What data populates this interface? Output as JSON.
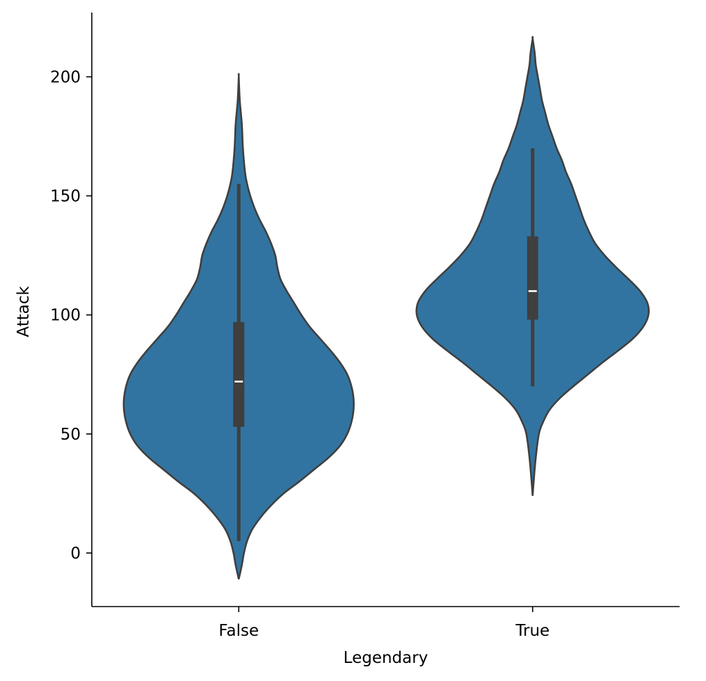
{
  "chart_data": {
    "type": "violin",
    "title": "",
    "xlabel": "Legendary",
    "ylabel": "Attack",
    "ylim": [
      -22.5,
      227
    ],
    "yticks": [
      0,
      50,
      100,
      150,
      200
    ],
    "categories": [
      "False",
      "True"
    ],
    "grid": false,
    "color": "#3274a1",
    "edge_color": "#3f3f3f",
    "violins": [
      {
        "category": "False",
        "extent": [
          -11,
          200
        ],
        "min": 5,
        "q1": 53,
        "median": 72,
        "q3": 97,
        "max": 155,
        "density": [
          [
            -11,
            0.0
          ],
          [
            -5,
            0.03
          ],
          [
            0,
            0.05
          ],
          [
            5,
            0.08
          ],
          [
            10,
            0.13
          ],
          [
            15,
            0.21
          ],
          [
            20,
            0.31
          ],
          [
            25,
            0.43
          ],
          [
            30,
            0.58
          ],
          [
            35,
            0.72
          ],
          [
            40,
            0.86
          ],
          [
            45,
            0.97
          ],
          [
            50,
            1.04
          ],
          [
            55,
            1.08
          ],
          [
            60,
            1.1
          ],
          [
            65,
            1.1
          ],
          [
            70,
            1.08
          ],
          [
            75,
            1.04
          ],
          [
            80,
            0.97
          ],
          [
            85,
            0.88
          ],
          [
            90,
            0.78
          ],
          [
            95,
            0.68
          ],
          [
            100,
            0.6
          ],
          [
            105,
            0.53
          ],
          [
            110,
            0.46
          ],
          [
            115,
            0.4
          ],
          [
            120,
            0.37
          ],
          [
            125,
            0.35
          ],
          [
            130,
            0.31
          ],
          [
            135,
            0.26
          ],
          [
            140,
            0.2
          ],
          [
            145,
            0.15
          ],
          [
            150,
            0.11
          ],
          [
            155,
            0.08
          ],
          [
            160,
            0.06
          ],
          [
            170,
            0.04
          ],
          [
            180,
            0.03
          ],
          [
            190,
            0.01
          ],
          [
            200,
            0.0
          ]
        ]
      },
      {
        "category": "True",
        "extent": [
          24,
          216
        ],
        "min": 70,
        "q1": 98,
        "median": 110,
        "q3": 133,
        "max": 170,
        "density": [
          [
            24,
            0.0
          ],
          [
            30,
            0.01
          ],
          [
            40,
            0.03
          ],
          [
            50,
            0.06
          ],
          [
            55,
            0.1
          ],
          [
            60,
            0.16
          ],
          [
            65,
            0.26
          ],
          [
            70,
            0.39
          ],
          [
            75,
            0.53
          ],
          [
            80,
            0.67
          ],
          [
            85,
            0.82
          ],
          [
            90,
            0.96
          ],
          [
            95,
            1.06
          ],
          [
            100,
            1.11
          ],
          [
            105,
            1.1
          ],
          [
            110,
            1.03
          ],
          [
            115,
            0.92
          ],
          [
            120,
            0.8
          ],
          [
            125,
            0.69
          ],
          [
            130,
            0.6
          ],
          [
            135,
            0.54
          ],
          [
            140,
            0.49
          ],
          [
            145,
            0.45
          ],
          [
            150,
            0.41
          ],
          [
            155,
            0.37
          ],
          [
            160,
            0.32
          ],
          [
            165,
            0.28
          ],
          [
            170,
            0.23
          ],
          [
            175,
            0.19
          ],
          [
            180,
            0.15
          ],
          [
            185,
            0.12
          ],
          [
            190,
            0.09
          ],
          [
            195,
            0.07
          ],
          [
            200,
            0.05
          ],
          [
            205,
            0.03
          ],
          [
            210,
            0.02
          ],
          [
            216,
            0.0
          ]
        ]
      }
    ]
  }
}
